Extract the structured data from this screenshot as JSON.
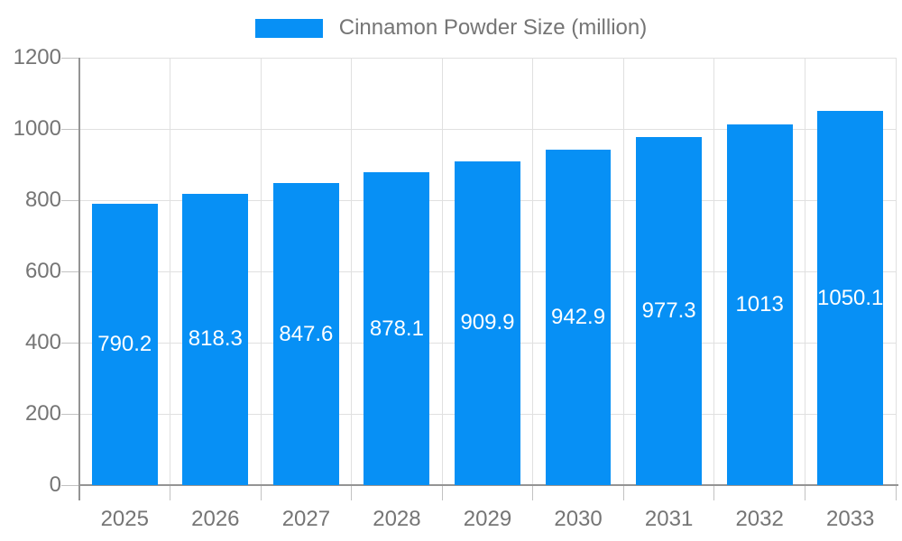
{
  "legend": {
    "series_label": "Cinnamon Powder Size (million)"
  },
  "chart_data": {
    "type": "bar",
    "title": "Cinnamon Powder Size (million)",
    "categories": [
      "2025",
      "2026",
      "2027",
      "2028",
      "2029",
      "2030",
      "2031",
      "2032",
      "2033"
    ],
    "values": [
      790.2,
      818.3,
      847.6,
      878.1,
      909.9,
      942.9,
      977.3,
      1013,
      1050.1
    ],
    "value_labels": [
      "790.2",
      "818.3",
      "847.6",
      "878.1",
      "909.9",
      "942.9",
      "977.3",
      "1013",
      "1050.1"
    ],
    "xlabel": "",
    "ylabel": "",
    "ylim": [
      0,
      1200
    ],
    "yticks": [
      0,
      200,
      400,
      600,
      800,
      1000,
      1200
    ],
    "ytick_labels": [
      "0",
      "200",
      "400",
      "600",
      "800",
      "1000",
      "1200"
    ],
    "grid": true,
    "legend_position": "top",
    "bar_label_position": "center",
    "colors": {
      "bar": "#0790f5",
      "grid": "#e0e0e0",
      "tick": "#c2c2c2",
      "axis": "#949494",
      "axis_label": "#757575",
      "bar_label": "#ffffff",
      "background": "#ffffff"
    }
  }
}
